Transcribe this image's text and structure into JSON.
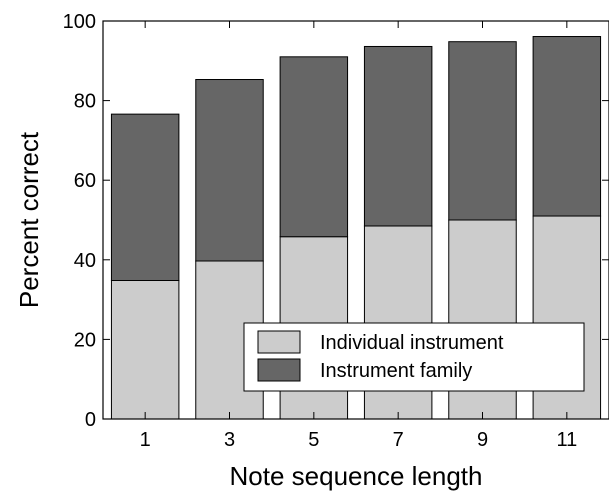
{
  "chart_data": {
    "type": "bar",
    "stacked": true,
    "categories": [
      "1",
      "3",
      "5",
      "7",
      "9",
      "11"
    ],
    "series": [
      {
        "name": "Individual instrument",
        "color": "#cccccc",
        "values": [
          34.8,
          39.7,
          45.8,
          48.5,
          50.0,
          51.0
        ]
      },
      {
        "name": "Instrument family",
        "color": "#666666",
        "values": [
          41.8,
          45.6,
          45.2,
          45.1,
          44.8,
          45.1
        ]
      }
    ],
    "xlabel": "Note sequence length",
    "ylabel": "Percent correct",
    "ylim": [
      0,
      100
    ],
    "yticks": [
      0,
      20,
      40,
      60,
      80,
      100
    ],
    "grid": false,
    "legend_position": "bottom-right"
  }
}
